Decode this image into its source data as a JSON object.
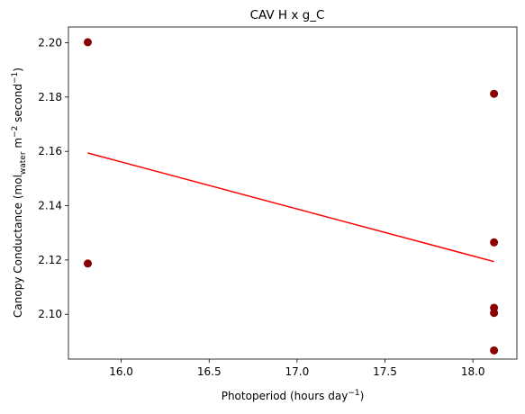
{
  "chart_data": {
    "type": "scatter",
    "title": "CAV H x g_C",
    "xlabel": {
      "text": "Photoperiod (hours day",
      "sup": "−1",
      "close": ")"
    },
    "ylabel": {
      "pre": "Canopy Conductance (mol",
      "sub": "water",
      "mid": " m",
      "sup1": "−2",
      "mid2": " second",
      "sup2": "−1",
      "close": ")"
    },
    "xlim": [
      15.7,
      18.25
    ],
    "ylim": [
      2.0835,
      2.2058
    ],
    "xticks": [
      "16.0",
      "16.5",
      "17.0",
      "17.5",
      "18.0"
    ],
    "yticks": [
      "2.10",
      "2.12",
      "2.14",
      "2.16",
      "2.18",
      "2.20"
    ],
    "grid": false,
    "points": [
      {
        "x": 15.81,
        "y": 2.2002
      },
      {
        "x": 15.81,
        "y": 2.1187
      },
      {
        "x": 18.12,
        "y": 2.1812
      },
      {
        "x": 18.12,
        "y": 2.1265
      },
      {
        "x": 18.12,
        "y": 2.1024
      },
      {
        "x": 18.12,
        "y": 2.1005
      },
      {
        "x": 18.12,
        "y": 2.0867
      }
    ],
    "fit_line": {
      "x": [
        15.81,
        18.12
      ],
      "y": [
        2.1594,
        2.1194
      ]
    },
    "colors": {
      "points": "#8b0000",
      "line": "#ff0000"
    }
  }
}
